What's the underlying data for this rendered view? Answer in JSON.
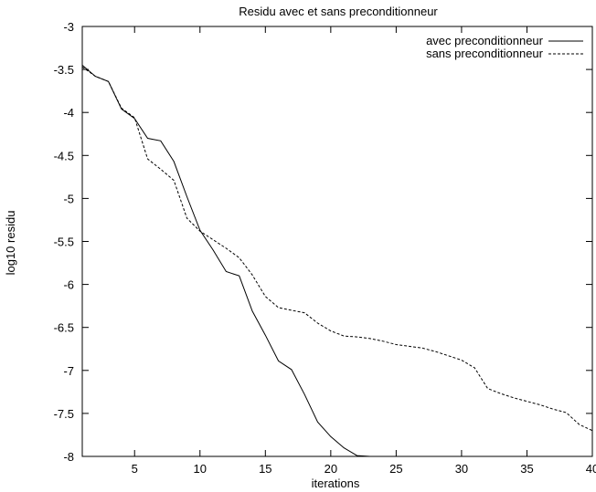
{
  "chart_data": {
    "type": "line",
    "title": "Residu avec et sans preconditionneur",
    "xlabel": "iterations",
    "ylabel": "log10 residu",
    "xlim": [
      1,
      40
    ],
    "ylim": [
      -8,
      -3
    ],
    "x_ticks": [
      5,
      10,
      15,
      20,
      25,
      30,
      35,
      40
    ],
    "x_tick_labels": [
      "5",
      "10",
      "15",
      "20",
      "25",
      "30",
      "35",
      "40"
    ],
    "y_ticks": [
      -3,
      -3.5,
      -4,
      -4.5,
      -5,
      -5.5,
      -6,
      -6.5,
      -7,
      -7.5,
      -8
    ],
    "y_tick_labels": [
      "-3",
      "-3.5",
      "-4",
      "-4.5",
      "-5",
      "-5.5",
      "-6",
      "-6.5",
      "-7",
      "-7.5",
      "-8"
    ],
    "grid": false,
    "legend_position": "top-right",
    "series": [
      {
        "name": "avec preconditionneur",
        "style": "solid",
        "x": [
          1,
          2,
          3,
          4,
          5,
          6,
          7,
          8,
          9,
          10,
          11,
          12,
          13,
          14,
          15,
          16,
          17,
          18,
          19,
          20,
          21,
          22,
          23
        ],
        "y": [
          -3.45,
          -3.58,
          -3.64,
          -3.96,
          -4.07,
          -4.3,
          -4.33,
          -4.57,
          -4.98,
          -5.37,
          -5.6,
          -5.85,
          -5.9,
          -6.31,
          -6.59,
          -6.89,
          -6.99,
          -7.28,
          -7.6,
          -7.77,
          -7.9,
          -7.99,
          -8.0
        ]
      },
      {
        "name": "sans preconditionneur",
        "style": "dashed",
        "x": [
          1,
          2,
          3,
          4,
          5,
          6,
          7,
          8,
          9,
          10,
          11,
          12,
          13,
          14,
          15,
          16,
          17,
          18,
          19,
          20,
          21,
          22,
          23,
          24,
          25,
          26,
          27,
          28,
          29,
          30,
          31,
          32,
          33,
          34,
          35,
          36,
          37,
          38,
          39,
          40
        ],
        "y": [
          -3.47,
          -3.58,
          -3.64,
          -3.95,
          -4.06,
          -4.54,
          -4.66,
          -4.79,
          -5.23,
          -5.38,
          -5.48,
          -5.58,
          -5.69,
          -5.89,
          -6.14,
          -6.27,
          -6.3,
          -6.33,
          -6.45,
          -6.54,
          -6.6,
          -6.61,
          -6.63,
          -6.66,
          -6.7,
          -6.72,
          -6.74,
          -6.78,
          -6.83,
          -6.88,
          -6.97,
          -7.21,
          -7.27,
          -7.32,
          -7.36,
          -7.4,
          -7.45,
          -7.49,
          -7.63,
          -7.7
        ]
      }
    ]
  }
}
